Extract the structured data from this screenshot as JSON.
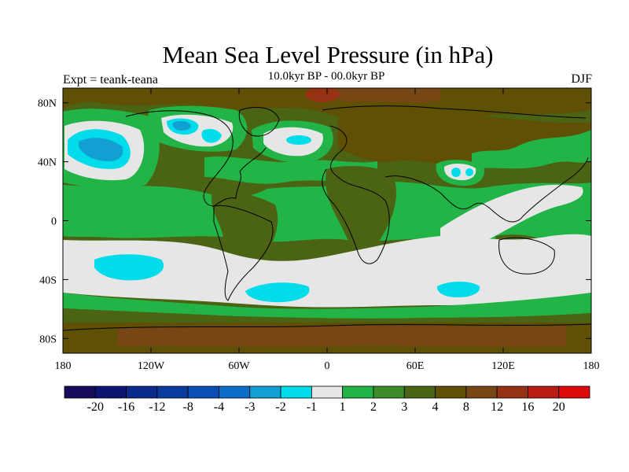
{
  "map": {
    "title": "Mean Sea Level Pressure (in hPa)",
    "subtitle": "10.0kyr BP - 00.0kyr BP",
    "left_label": "Expt = teank-teana",
    "right_label": "DJF",
    "projection": "cylindrical-equidistant",
    "lon_range": [
      -180,
      180
    ],
    "lat_range": [
      -90,
      90
    ],
    "lat_ticks": [
      {
        "value": 80,
        "label": "80N"
      },
      {
        "value": 40,
        "label": "40N"
      },
      {
        "value": 0,
        "label": "0"
      },
      {
        "value": -40,
        "label": "40S"
      },
      {
        "value": -80,
        "label": "80S"
      }
    ],
    "lon_ticks": [
      {
        "value": -180,
        "label": "180"
      },
      {
        "value": -120,
        "label": "120W"
      },
      {
        "value": -60,
        "label": "60W"
      },
      {
        "value": 0,
        "label": "0"
      },
      {
        "value": 60,
        "label": "60E"
      },
      {
        "value": 120,
        "label": "120E"
      },
      {
        "value": 180,
        "label": "180"
      }
    ]
  },
  "colorbar": {
    "colors": [
      "#1a0a5e",
      "#0d1472",
      "#0a2a8c",
      "#0a3ca0",
      "#0a50b4",
      "#0a6ec8",
      "#12a0d2",
      "#00dcea",
      "#e6e6e6",
      "#22b446",
      "#3c8c28",
      "#4b6414",
      "#5f5005",
      "#784614",
      "#963214",
      "#b91e14",
      "#dc0a0a"
    ],
    "labels": [
      "-20",
      "-16",
      "-12",
      "-8",
      "-4",
      "-3",
      "-2",
      "-1",
      "1",
      "2",
      "3",
      "4",
      "8",
      "12",
      "16",
      "20"
    ]
  }
}
